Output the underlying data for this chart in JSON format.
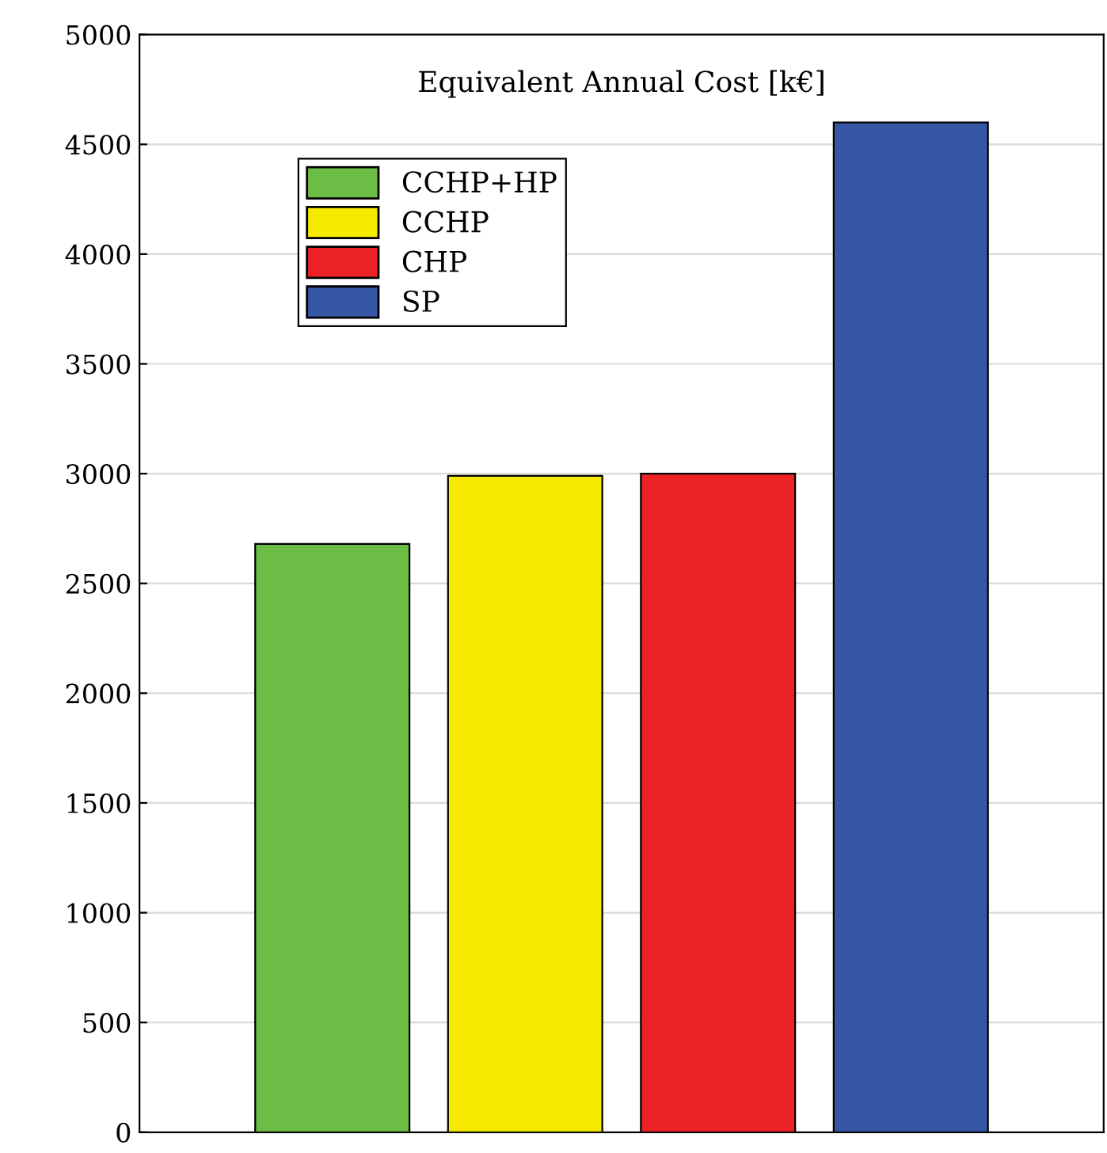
{
  "chart_data": {
    "type": "bar",
    "title": "Equivalent Annual Cost [k€]",
    "categories": [
      null,
      null,
      null,
      null
    ],
    "series": [
      {
        "name": "CCHP+HP",
        "color": "#6bbd45",
        "values": [
          2680,
          null,
          null,
          null
        ]
      },
      {
        "name": "CCHP",
        "color": "#f5ea00",
        "values": [
          null,
          2990,
          null,
          null
        ]
      },
      {
        "name": "CHP",
        "color": "#ec2227",
        "values": [
          null,
          null,
          3000,
          null
        ]
      },
      {
        "name": "SP",
        "color": "#3656a6",
        "values": [
          null,
          null,
          null,
          4600
        ]
      }
    ],
    "ylim": [
      0,
      5000
    ],
    "yticks": [
      0,
      500,
      1000,
      1500,
      2000,
      2500,
      3000,
      3500,
      4000,
      4500,
      5000
    ],
    "grid": "y",
    "legend": "top left"
  }
}
